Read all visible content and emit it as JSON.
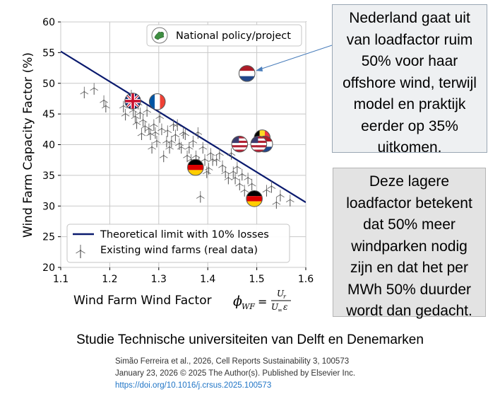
{
  "chart_data": {
    "type": "scatter",
    "title": "",
    "xlabel": "Wind Farm Wind Factor",
    "xlabel_symbol": "ϕ",
    "xlabel_sub": "WF",
    "xlabel_frac_num": "U",
    "xlabel_frac_num_sub": "r",
    "xlabel_frac_den": "U",
    "xlabel_frac_den_sub": "∞",
    "xlabel_frac_den_eps": "ε",
    "ylabel": "Wind Farm Capacity Factor (%)",
    "xlim": [
      1.1,
      1.6
    ],
    "ylim": [
      20,
      60
    ],
    "xticks": [
      1.1,
      1.2,
      1.3,
      1.4,
      1.5,
      1.6
    ],
    "xtick_labels": [
      "1.1",
      "1.2",
      "1.3",
      "1.4",
      "1.5",
      "1.6"
    ],
    "yticks": [
      20,
      25,
      30,
      35,
      40,
      45,
      50,
      55,
      60
    ],
    "ytick_labels": [
      "20",
      "25",
      "30",
      "35",
      "40",
      "45",
      "50",
      "55",
      "60"
    ],
    "grid": true,
    "theoretical_line": {
      "name": "Theoretical limit with 10% losses",
      "x": [
        1.1,
        1.6
      ],
      "y": [
        55.2,
        30.6
      ],
      "color": "#0a1a6e"
    },
    "existing_wind_farms": {
      "name": "Existing wind farms (real data)",
      "points": [
        [
          1.148,
          48.6
        ],
        [
          1.168,
          49.2
        ],
        [
          1.188,
          47.2
        ],
        [
          1.192,
          46.3
        ],
        [
          1.228,
          46.3
        ],
        [
          1.232,
          45.0
        ],
        [
          1.244,
          48.1
        ],
        [
          1.248,
          45.6
        ],
        [
          1.252,
          44.6
        ],
        [
          1.255,
          43.6
        ],
        [
          1.258,
          46.8
        ],
        [
          1.262,
          45.2
        ],
        [
          1.265,
          41.8
        ],
        [
          1.268,
          44.0
        ],
        [
          1.272,
          43.0
        ],
        [
          1.276,
          45.6
        ],
        [
          1.28,
          42.6
        ],
        [
          1.283,
          41.8
        ],
        [
          1.286,
          39.6
        ],
        [
          1.29,
          43.3
        ],
        [
          1.293,
          42.0
        ],
        [
          1.296,
          40.6
        ],
        [
          1.302,
          44.6
        ],
        [
          1.306,
          42.6
        ],
        [
          1.31,
          38.2
        ],
        [
          1.316,
          40.6
        ],
        [
          1.318,
          42.3
        ],
        [
          1.322,
          39.6
        ],
        [
          1.326,
          40.6
        ],
        [
          1.33,
          43.3
        ],
        [
          1.334,
          41.6
        ],
        [
          1.338,
          43.3
        ],
        [
          1.342,
          40.2
        ],
        [
          1.346,
          39.6
        ],
        [
          1.35,
          42.0
        ],
        [
          1.354,
          41.8
        ],
        [
          1.358,
          38.2
        ],
        [
          1.362,
          39.6
        ],
        [
          1.366,
          37.6
        ],
        [
          1.37,
          40.6
        ],
        [
          1.376,
          38.2
        ],
        [
          1.38,
          42.0
        ],
        [
          1.382,
          37.2
        ],
        [
          1.385,
          31.6
        ],
        [
          1.39,
          39.6
        ],
        [
          1.394,
          37.6
        ],
        [
          1.398,
          35.6
        ],
        [
          1.402,
          36.2
        ],
        [
          1.406,
          38.6
        ],
        [
          1.41,
          37.6
        ],
        [
          1.418,
          37.6
        ],
        [
          1.424,
          38.6
        ],
        [
          1.43,
          36.6
        ],
        [
          1.436,
          35.6
        ],
        [
          1.442,
          34.6
        ],
        [
          1.448,
          38.6
        ],
        [
          1.452,
          35.6
        ],
        [
          1.456,
          34.6
        ],
        [
          1.46,
          36.4
        ],
        [
          1.465,
          33.6
        ],
        [
          1.47,
          35.2
        ],
        [
          1.475,
          32.6
        ],
        [
          1.482,
          34.6
        ],
        [
          1.49,
          33.6
        ],
        [
          1.52,
          32.6
        ],
        [
          1.53,
          33.2
        ],
        [
          1.54,
          30.6
        ],
        [
          1.548,
          31.8
        ],
        [
          1.568,
          31.0
        ]
      ]
    },
    "national_policy": {
      "name": "National policy/project",
      "points": [
        {
          "country": "United Kingdom",
          "x": 1.247,
          "y": 47.1
        },
        {
          "country": "France",
          "x": 1.297,
          "y": 47.0
        },
        {
          "country": "Netherlands",
          "x": 1.48,
          "y": 51.6
        },
        {
          "country": "United States",
          "x": 1.465,
          "y": 40.1
        },
        {
          "country": "Belgium",
          "x": 1.511,
          "y": 41.1
        },
        {
          "country": "Netherlands",
          "x": 1.516,
          "y": 40.1
        },
        {
          "country": "United States",
          "x": 1.504,
          "y": 40.1
        },
        {
          "country": "Germany",
          "x": 1.375,
          "y": 36.3
        },
        {
          "country": "Germany",
          "x": 1.495,
          "y": 31.2
        }
      ]
    },
    "legend": {
      "line_label": "Theoretical limit with 10% losses",
      "marker_label": "Existing wind farms (real data)",
      "flag_label": "National policy/project",
      "placement": "bottom-center"
    }
  },
  "callouts": {
    "top_text": "Nederland gaat uit van loadfactor ruim 50% voor haar offshore wind, terwijl model en praktijk eerder op 35% uitkomen.",
    "bottom_text": "Deze lagere loadfactor betekent dat 50% meer windparken nodig zijn en dat het per MWh 50% duurder wordt dan gedacht."
  },
  "footer": {
    "title": "Studie Technische universiteiten van Delft en Denemarken",
    "citation_line1": "Simão Ferreira et al., 2026, Cell Reports Sustainability 3, 100573",
    "citation_line2": "January 23, 2026 © 2025 The Author(s). Published by Elsevier Inc.",
    "citation_doi": "https://doi.org/10.1016/j.crsus.2025.100573"
  },
  "colors": {
    "line": "#0a1a6e",
    "grid": "#c8c8c8",
    "callout_border": "#9aa7b4",
    "callout_bg": "#eef0f2",
    "callout2_bg": "#e3e3e3",
    "arrow": "#4a7ebb",
    "doi_link": "#1f74c6"
  },
  "icons": {
    "wind_turbine": "wind-turbine-icon",
    "policy_badge": "green-map-icon"
  }
}
